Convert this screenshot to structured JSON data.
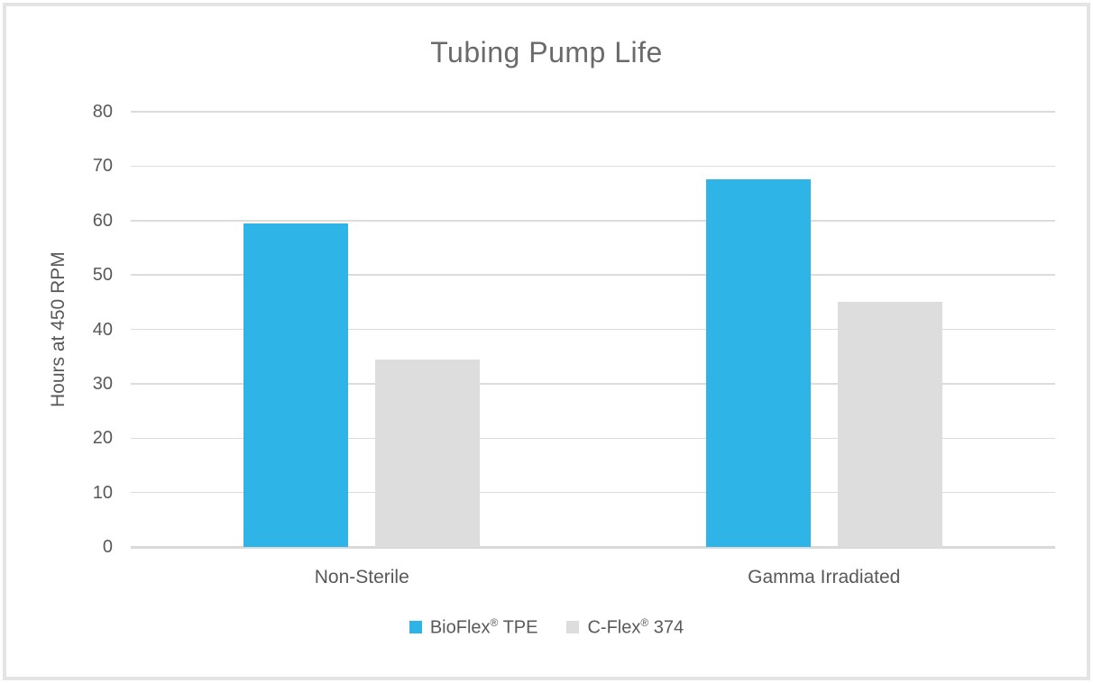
{
  "chart_data": {
    "type": "bar",
    "title": "Tubing Pump Life",
    "ylabel": "Hours at 450 RPM",
    "categories": [
      "Non-Sterile",
      "Gamma Irradiated"
    ],
    "series": [
      {
        "name": "BioFlex® TPE",
        "color": "#2FB4E7",
        "values": [
          59.5,
          67.5
        ]
      },
      {
        "name": "C-Flex® 374",
        "color": "#DDDDDD",
        "values": [
          34.5,
          45
        ]
      }
    ],
    "ylim": [
      0,
      80
    ],
    "ytick_step": 10,
    "grid": true,
    "legend_position": "bottom",
    "colors": {
      "background": "#FFFFFF",
      "frame_border": "#E4E4E4",
      "gridline": "#DCDCDC",
      "axis_line": "#D9D9D9",
      "title_text": "#6A6A6A",
      "axis_text": "#595959"
    }
  }
}
